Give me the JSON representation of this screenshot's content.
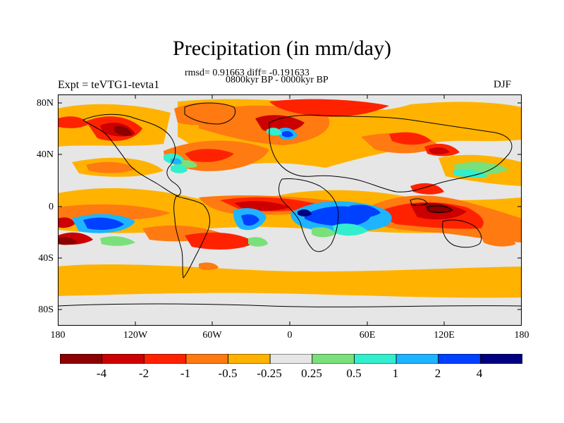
{
  "title": "Precipitation (in mm/day)",
  "stats": "rmsd= 0.91663  diff= -0.191633",
  "period": "0800kyr BP - 0000kyr BP",
  "experiment": "Expt = teVTG1-tevta1",
  "season": "DJF",
  "lat_labels": [
    "80N",
    "40N",
    "0",
    "40S",
    "80S"
  ],
  "lon_labels": [
    "180",
    "120W",
    "60W",
    "0",
    "60E",
    "120E",
    "180"
  ],
  "colorbar": {
    "labels": [
      "-4",
      "-2",
      "-1",
      "-0.5",
      "-0.25",
      "0.25",
      "0.5",
      "1",
      "2",
      "4"
    ],
    "colors": [
      "#8b0000",
      "#cc0000",
      "#ff2200",
      "#ff7a10",
      "#ffb300",
      "#e6e6e6",
      "#7ae07a",
      "#33eecc",
      "#1eb4ff",
      "#0040ff",
      "#000080"
    ]
  }
}
